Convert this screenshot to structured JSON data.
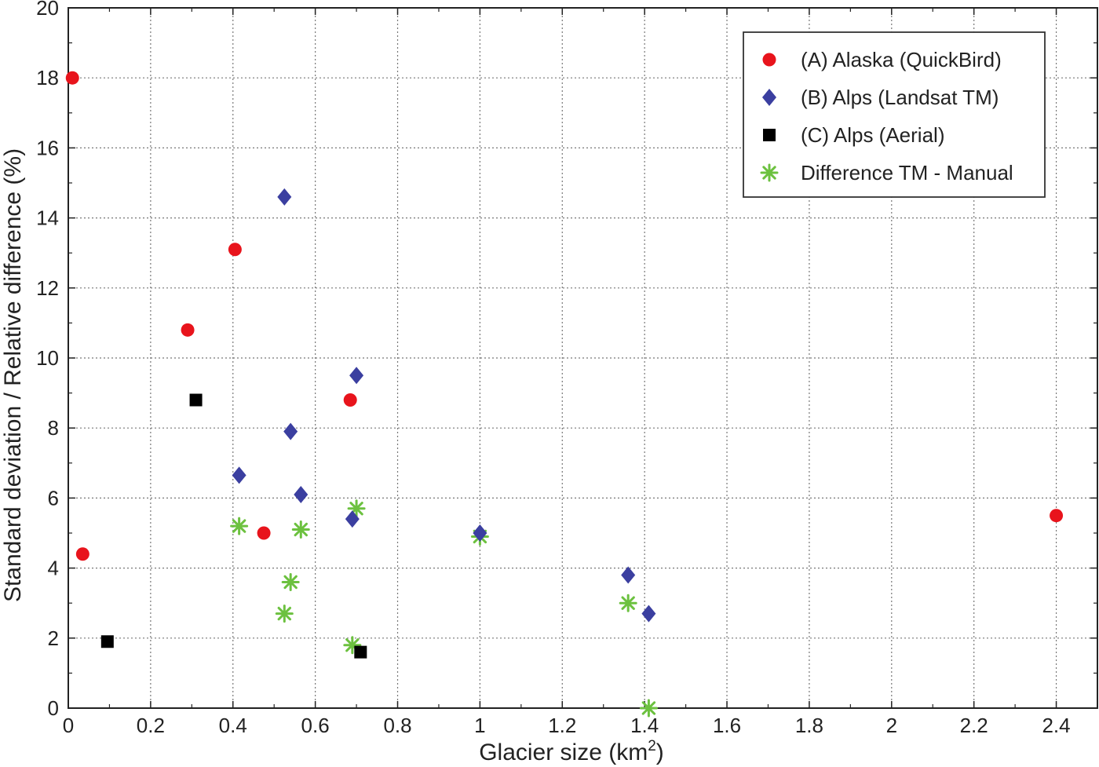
{
  "chart_data": {
    "type": "scatter",
    "xlabel": "Glacier size (km",
    "xlabel_sup": "2",
    "xlabel_end": ")",
    "ylabel": "Standard deviation / Relative difference (%)",
    "xlim": [
      0,
      2.5
    ],
    "ylim": [
      0,
      20
    ],
    "x_ticks": [
      0,
      0.2,
      0.4,
      0.6,
      0.8,
      1,
      1.2,
      1.4,
      1.6,
      1.8,
      2,
      2.2,
      2.4
    ],
    "x_tick_labels": [
      "0",
      "0.2",
      "0.4",
      "0.6",
      "0.8",
      "1",
      "1.2",
      "1.4",
      "1.6",
      "1.8",
      "2",
      "2.2",
      "2.4"
    ],
    "y_ticks": [
      0,
      2,
      4,
      6,
      8,
      10,
      12,
      14,
      16,
      18,
      20
    ],
    "y_tick_labels": [
      "0",
      "2",
      "4",
      "6",
      "8",
      "10",
      "12",
      "14",
      "16",
      "18",
      "20"
    ],
    "grid": true,
    "legend_position": "top-right",
    "series": [
      {
        "name": "(A) Alaska (QuickBird)",
        "marker": "circle",
        "color": "#e8141c",
        "points": [
          [
            0.01,
            18.0
          ],
          [
            0.035,
            4.4
          ],
          [
            0.29,
            10.8
          ],
          [
            0.405,
            13.1
          ],
          [
            0.475,
            5.0
          ],
          [
            0.685,
            8.8
          ],
          [
            2.4,
            5.5
          ]
        ]
      },
      {
        "name": "(B) Alps (Landsat TM)",
        "marker": "diamond",
        "color": "#3b3fa0",
        "points": [
          [
            0.525,
            14.6
          ],
          [
            0.415,
            6.65
          ],
          [
            0.54,
            7.9
          ],
          [
            0.565,
            6.1
          ],
          [
            0.69,
            5.4
          ],
          [
            0.7,
            9.5
          ],
          [
            1.0,
            5.0
          ],
          [
            1.36,
            3.8
          ],
          [
            1.41,
            2.7
          ]
        ]
      },
      {
        "name": "(C) Alps (Aerial)",
        "marker": "square",
        "color": "#000000",
        "points": [
          [
            0.095,
            1.9
          ],
          [
            0.31,
            8.8
          ],
          [
            0.71,
            1.6
          ]
        ]
      },
      {
        "name": "Difference TM - Manual",
        "marker": "asterisk",
        "color": "#6cc13f",
        "points": [
          [
            0.415,
            5.2
          ],
          [
            0.525,
            2.7
          ],
          [
            0.54,
            3.6
          ],
          [
            0.565,
            5.1
          ],
          [
            0.69,
            1.8
          ],
          [
            0.7,
            5.7
          ],
          [
            1.0,
            4.9
          ],
          [
            1.36,
            3.0
          ],
          [
            1.41,
            0.0
          ]
        ]
      }
    ]
  }
}
